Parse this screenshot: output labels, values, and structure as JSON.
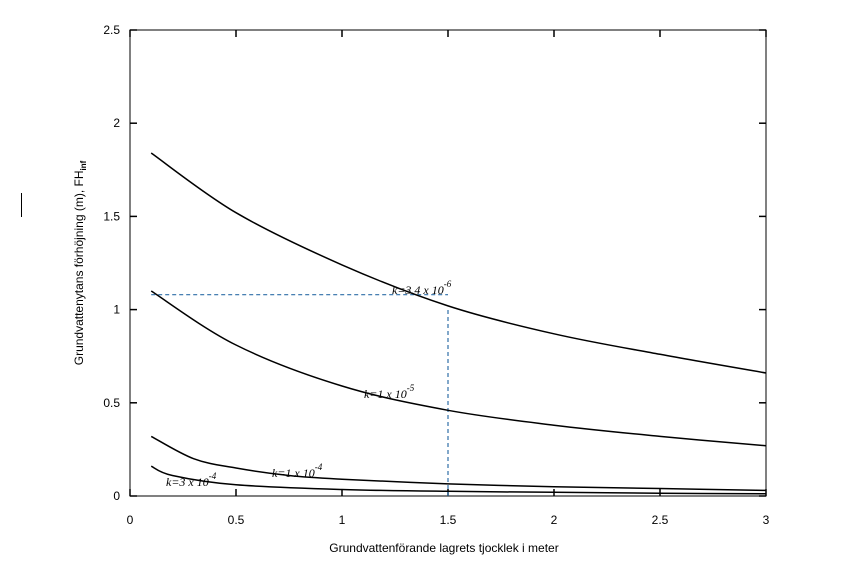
{
  "chart_data": {
    "type": "line",
    "title": "",
    "xlabel": "Grundvattenförande lagrets tjocklek i meter",
    "ylabel": "Grundvattenytans förhöjning (m), FH",
    "ylabel_sub": "inf",
    "xlim": [
      0,
      3
    ],
    "ylim": [
      0,
      2.5
    ],
    "xticks": [
      0,
      0.5,
      1,
      1.5,
      2,
      2.5,
      3
    ],
    "xtick_labels": [
      "0",
      "0.5",
      "1",
      "1.5",
      "2",
      "2.5",
      "3"
    ],
    "yticks": [
      0,
      0.5,
      1,
      1.5,
      2,
      2.5
    ],
    "ytick_labels": [
      "0",
      "0.5",
      "1",
      "1.5",
      "2",
      "2.5"
    ],
    "grid": false,
    "series": [
      {
        "name": "k=3.4 x 10-6",
        "label_base": "k=3.4 x 10",
        "label_exp": "-6",
        "x": [
          0.1,
          0.5,
          1.0,
          1.5,
          2.0,
          2.5,
          3.0
        ],
        "y": [
          1.84,
          1.52,
          1.24,
          1.02,
          0.87,
          0.76,
          0.66
        ]
      },
      {
        "name": "k=1 x 10-5",
        "label_base": "k=1 x 10",
        "label_exp": "-5",
        "x": [
          0.1,
          0.5,
          1.0,
          1.5,
          2.0,
          2.5,
          3.0
        ],
        "y": [
          1.1,
          0.81,
          0.59,
          0.46,
          0.38,
          0.32,
          0.27
        ]
      },
      {
        "name": "k=1 x 10-4",
        "label_base": "k=1 x 10",
        "label_exp": "-4",
        "x": [
          0.1,
          0.3,
          0.5,
          0.75,
          1.0,
          1.5,
          2.0,
          2.5,
          3.0
        ],
        "y": [
          0.32,
          0.2,
          0.15,
          0.11,
          0.09,
          0.065,
          0.05,
          0.04,
          0.03
        ]
      },
      {
        "name": "k=3 x 10-4",
        "label_base": "k=3 x 10",
        "label_exp": "-4",
        "x": [
          0.1,
          0.2,
          0.5,
          1.0,
          1.5,
          2.0,
          2.5,
          3.0
        ],
        "y": [
          0.16,
          0.11,
          0.06,
          0.035,
          0.025,
          0.02,
          0.015,
          0.012
        ]
      }
    ],
    "reference_lines": [
      {
        "name": "horizontal-guide",
        "color": "#2f6fa8",
        "x": [
          0.1,
          1.5
        ],
        "y": [
          1.08,
          1.08
        ]
      },
      {
        "name": "vertical-guide",
        "color": "#2f6fa8",
        "x": [
          1.5,
          1.5
        ],
        "y": [
          0,
          1.0
        ]
      }
    ],
    "colors": {
      "curve": "#000000",
      "guide": "#2f6fa8"
    }
  }
}
